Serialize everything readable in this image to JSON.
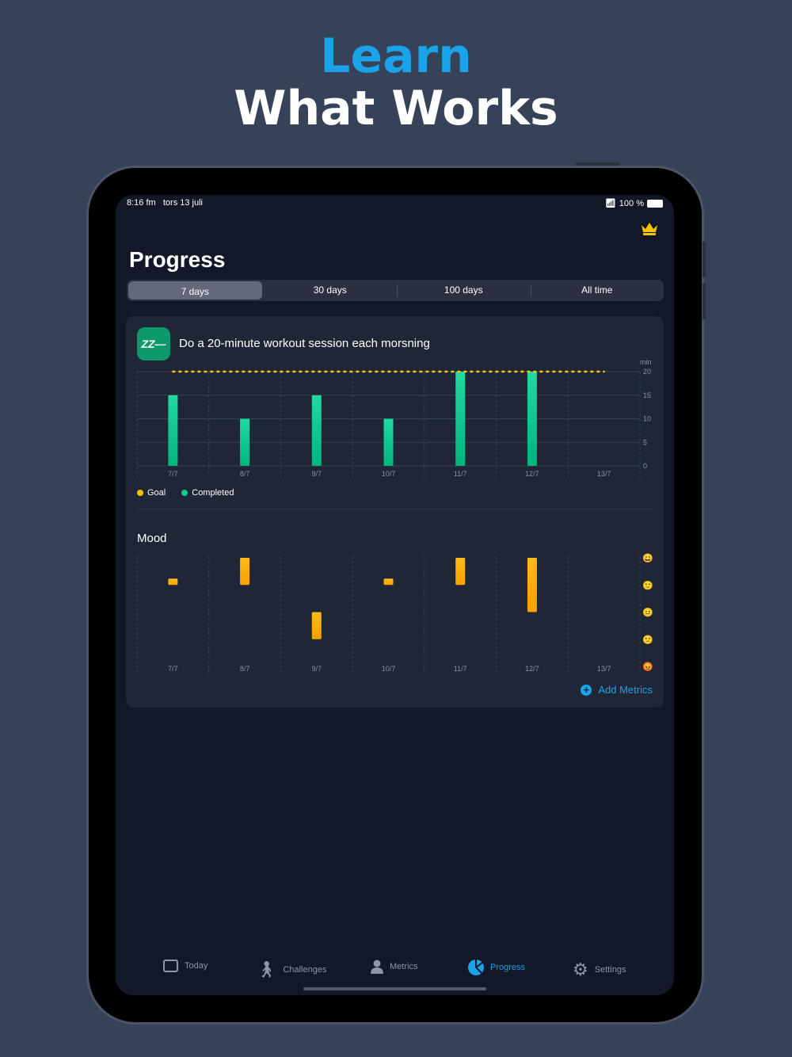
{
  "headline": {
    "line1": "Learn",
    "line2": "What Works"
  },
  "status_bar": {
    "time": "8:16 fm",
    "date": "tors 13 juli",
    "battery": "100 %"
  },
  "page_title": "Progress",
  "segments": [
    {
      "label": "7 days",
      "selected": true
    },
    {
      "label": "30 days"
    },
    {
      "label": "100 days"
    },
    {
      "label": "All time"
    }
  ],
  "challenge": {
    "icon_text": "ZZ—",
    "title": "Do a 20-minute workout session each morsning"
  },
  "colors": {
    "accent": "#1aa3e8",
    "completed": "#12c88e",
    "goal": "#f5c400",
    "mood": "#ffaa00"
  },
  "chart_data": [
    {
      "type": "bar",
      "categories": [
        "7/7",
        "8/7",
        "9/7",
        "10/7",
        "11/7",
        "12/7",
        "13/7"
      ],
      "series": [
        {
          "name": "Completed",
          "values": [
            15,
            10,
            15,
            10,
            20,
            20,
            0
          ]
        },
        {
          "name": "Goal",
          "values": [
            20,
            20,
            20,
            20,
            20,
            20,
            20
          ],
          "style": "dotted-line"
        }
      ],
      "ylabel": "min",
      "ylim": [
        0,
        20
      ],
      "yticks": [
        "0",
        "5",
        "10",
        "15",
        "20"
      ],
      "legend": [
        "Goal",
        "Completed"
      ],
      "legend_position": "bottom-left",
      "grid": true
    },
    {
      "type": "range-bar",
      "title": "Mood",
      "categories": [
        "7/7",
        "8/7",
        "9/7",
        "10/7",
        "11/7",
        "12/7",
        "13/7"
      ],
      "ranges": [
        [
          4,
          4
        ],
        [
          4,
          5
        ],
        [
          2,
          3
        ],
        [
          4,
          4
        ],
        [
          4,
          5
        ],
        [
          3,
          5
        ],
        null
      ],
      "ylim": [
        1,
        5
      ],
      "yticks": [
        "very-happy-emoji",
        "happy-emoji",
        "neutral-emoji",
        "sad-emoji",
        "angry-emoji"
      ]
    }
  ],
  "add_metrics": "Add Metrics",
  "tabs": [
    {
      "label": "Today",
      "icon": "calendar-icon"
    },
    {
      "label": "Challenges",
      "icon": "stairs-climbing-icon"
    },
    {
      "label": "Metrics",
      "icon": "person-icon"
    },
    {
      "label": "Progress",
      "icon": "pie-chart-icon",
      "active": true
    },
    {
      "label": "Settings",
      "icon": "gear-icon"
    }
  ]
}
